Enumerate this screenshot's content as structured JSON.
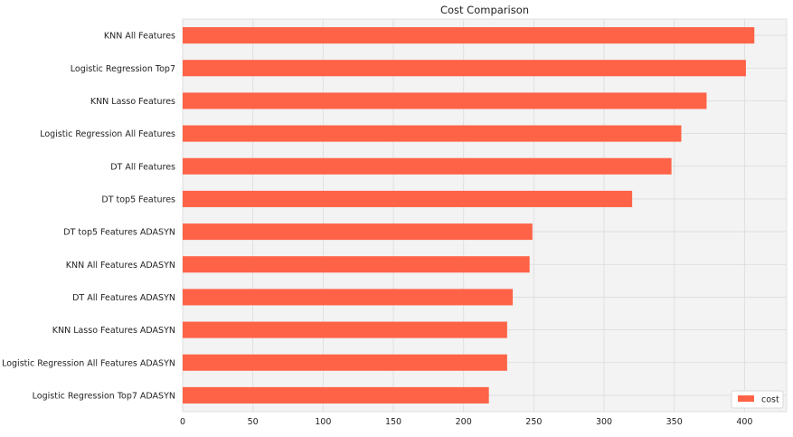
{
  "chart_data": {
    "type": "bar",
    "orientation": "horizontal",
    "title": "Cost Comparison",
    "xlabel": "",
    "ylabel": "",
    "categories": [
      "KNN All Features",
      "Logistic Regression Top7",
      "KNN Lasso Features",
      "Logistic Regression All Features",
      "DT All Features",
      "DT top5 Features",
      "DT top5 Features ADASYN",
      "KNN All Features ADASYN",
      "DT All Features ADASYN",
      "KNN Lasso Features ADASYN",
      "Logistic Regression All Features ADASYN",
      "Logistic Regression Top7 ADASYN"
    ],
    "series": [
      {
        "name": "cost",
        "color": "#ff6347",
        "values": [
          407,
          401,
          373,
          355,
          348,
          320,
          249,
          247,
          235,
          231,
          231,
          218
        ]
      }
    ],
    "xlim": [
      0,
      430
    ],
    "xticks": [
      0,
      50,
      100,
      150,
      200,
      250,
      300,
      350,
      400
    ],
    "grid": true,
    "legend": {
      "position": "bottom-right",
      "entries": [
        "cost"
      ]
    }
  }
}
